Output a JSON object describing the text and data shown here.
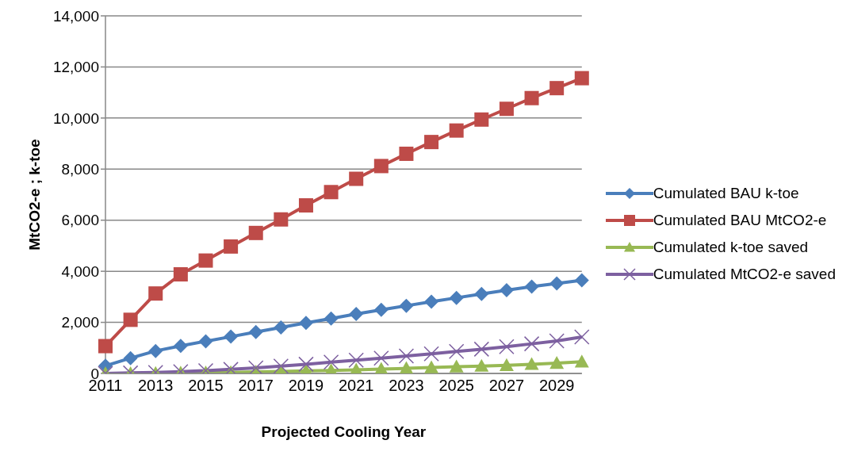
{
  "chart_data": {
    "type": "line",
    "xlabel": "Projected  Cooling Year",
    "ylabel": "MtCO2-e    ;    k-toe",
    "categories": [
      "2011",
      null,
      "2013",
      null,
      "2015",
      null,
      "2017",
      null,
      "2019",
      null,
      "2021",
      null,
      "2023",
      null,
      "2025",
      null,
      "2027",
      null,
      "2029",
      null
    ],
    "series": [
      {
        "name": "Cumulated BAU k-toe",
        "color": "#4a7ebb",
        "marker": "diamond",
        "values": [
          300,
          600,
          880,
          1080,
          1260,
          1440,
          1620,
          1800,
          1980,
          2150,
          2330,
          2490,
          2650,
          2810,
          2960,
          3110,
          3260,
          3400,
          3520,
          3650
        ]
      },
      {
        "name": "Cumulated BAU MtCO2-e",
        "color": "#be4b48",
        "marker": "square",
        "values": [
          1070,
          2100,
          3130,
          3880,
          4420,
          4970,
          5500,
          6030,
          6580,
          7100,
          7620,
          8120,
          8600,
          9060,
          9510,
          9940,
          10360,
          10780,
          11170,
          11560
        ]
      },
      {
        "name": "Cumulated k-toe saved",
        "color": "#98b954",
        "marker": "triangle",
        "values": [
          0,
          0,
          10,
          20,
          30,
          40,
          60,
          80,
          100,
          120,
          140,
          170,
          200,
          230,
          260,
          290,
          320,
          360,
          400,
          460
        ]
      },
      {
        "name": "Cumulated MtCO2-e saved",
        "color": "#7d60a0",
        "marker": "cross",
        "values": [
          0,
          20,
          40,
          70,
          110,
          160,
          220,
          290,
          360,
          440,
          520,
          600,
          680,
          770,
          860,
          950,
          1050,
          1160,
          1270,
          1430
        ]
      }
    ],
    "ylim": [
      0,
      14000
    ],
    "yticks": [
      0,
      {
        "value": 2000,
        "label": "2,000"
      },
      {
        "value": 4000,
        "label": "4,000"
      },
      {
        "value": 6000,
        "label": "6,000"
      },
      {
        "value": 8000,
        "label": "8,000"
      },
      {
        "value": 10000,
        "label": "10,000"
      },
      {
        "value": 12000,
        "label": "12,000"
      },
      {
        "value": 14000,
        "label": "14,000"
      }
    ],
    "grid": "y",
    "legend": "right",
    "line_style": "solid"
  }
}
